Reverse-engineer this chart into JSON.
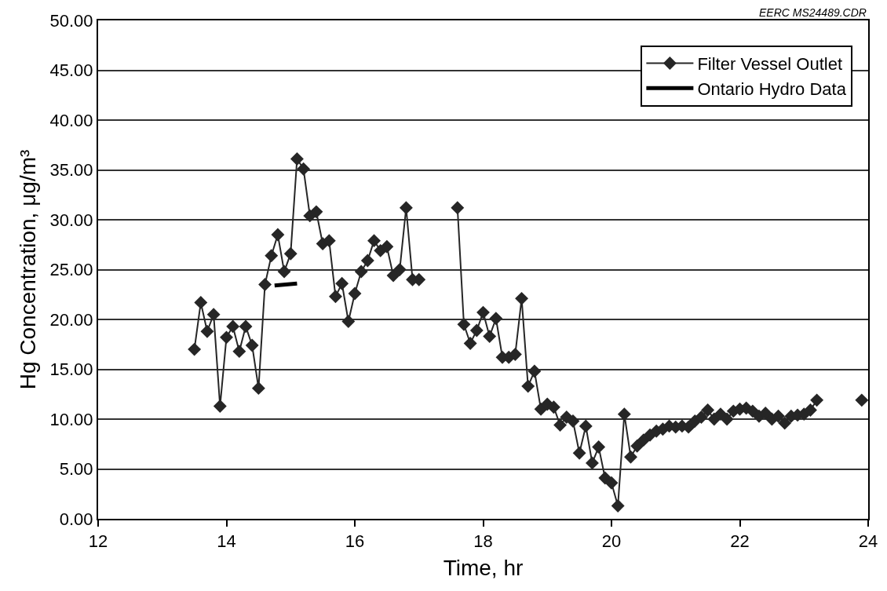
{
  "chart_data": {
    "type": "line",
    "xlabel": "Time, hr",
    "ylabel": "Hg Concentration, μg/m³",
    "annotations": [
      "EERC MS24489.CDR"
    ],
    "xlim": [
      12,
      24
    ],
    "xticks": [
      12,
      14,
      16,
      18,
      20,
      22,
      24
    ],
    "ylim": [
      0,
      50
    ],
    "yticks": [
      {
        "value": 0,
        "label": "0.00"
      },
      {
        "value": 5,
        "label": "5.00"
      },
      {
        "value": 10,
        "label": "10.00"
      },
      {
        "value": 15,
        "label": "15.00"
      },
      {
        "value": 20,
        "label": "20.00"
      },
      {
        "value": 25,
        "label": "25.00"
      },
      {
        "value": 30,
        "label": "30.00"
      },
      {
        "value": 35,
        "label": "35.00"
      },
      {
        "value": 40,
        "label": "40.00"
      },
      {
        "value": 45,
        "label": "45.00"
      },
      {
        "value": 50,
        "label": "50.00"
      }
    ],
    "grid": "y",
    "legend": "top right",
    "series": [
      {
        "name": "Filter Vessel Outlet",
        "color": "#262626",
        "marker": "diamond",
        "line_style": "solid",
        "x": [
          13.5,
          13.6,
          13.7,
          13.8,
          13.9,
          14.0,
          14.1,
          14.2,
          14.3,
          14.4,
          14.5,
          14.6,
          14.7,
          14.8,
          14.9,
          15.0,
          15.1,
          15.2,
          15.3,
          15.4,
          15.5,
          15.6,
          15.7,
          15.8,
          15.9,
          16.0,
          16.1,
          16.2,
          16.3,
          16.4,
          16.5,
          16.6,
          16.7,
          16.8,
          16.9,
          17.0,
          17.3,
          17.6,
          17.7,
          17.8,
          17.9,
          18.0,
          18.1,
          18.2,
          18.3,
          18.4,
          18.5,
          18.6,
          18.7,
          18.8,
          18.9,
          19.0,
          19.1,
          19.2,
          19.3,
          19.4,
          19.5,
          19.6,
          19.7,
          19.8,
          19.9,
          20.0,
          20.1,
          20.2,
          20.3,
          20.4,
          20.5,
          20.6,
          20.7,
          20.8,
          20.9,
          21.0,
          21.1,
          21.2,
          21.3,
          21.4,
          21.5,
          21.6,
          21.7,
          21.8,
          21.9,
          22.0,
          22.1,
          22.2,
          22.3,
          22.4,
          22.5,
          22.6,
          22.7,
          22.8,
          22.9,
          23.0,
          23.1,
          23.2,
          23.5,
          23.9
        ],
        "values": [
          17.0,
          21.7,
          18.8,
          20.5,
          11.3,
          18.2,
          19.3,
          16.8,
          19.3,
          17.4,
          13.1,
          23.5,
          26.4,
          28.5,
          24.8,
          26.6,
          36.1,
          35.1,
          30.4,
          30.8,
          27.6,
          27.9,
          22.3,
          23.6,
          19.8,
          22.6,
          24.8,
          25.9,
          27.9,
          26.9,
          27.3,
          24.4,
          25.0,
          31.2,
          24.0,
          24.0,
          null,
          31.2,
          19.5,
          17.6,
          18.9,
          20.7,
          18.3,
          20.1,
          16.2,
          16.2,
          16.5,
          22.1,
          13.3,
          14.8,
          11.0,
          11.5,
          11.2,
          9.4,
          10.2,
          9.8,
          6.6,
          9.3,
          5.6,
          7.2,
          4.1,
          3.6,
          1.3,
          10.5,
          6.2,
          7.3,
          7.9,
          8.4,
          8.8,
          9.0,
          9.3,
          9.2,
          9.3,
          9.2,
          9.8,
          10.2,
          10.9,
          10.0,
          10.5,
          10.0,
          10.8,
          11.0,
          11.1,
          10.8,
          10.3,
          10.6,
          10.0,
          10.3,
          9.6,
          10.3,
          10.4,
          10.5,
          10.9,
          11.9,
          null,
          11.9
        ]
      },
      {
        "name": "Ontario Hydro Data",
        "color": "#000000",
        "marker": "none",
        "line_style": "solid",
        "x": [
          14.75,
          15.1
        ],
        "values": [
          23.4,
          23.6
        ]
      }
    ]
  }
}
